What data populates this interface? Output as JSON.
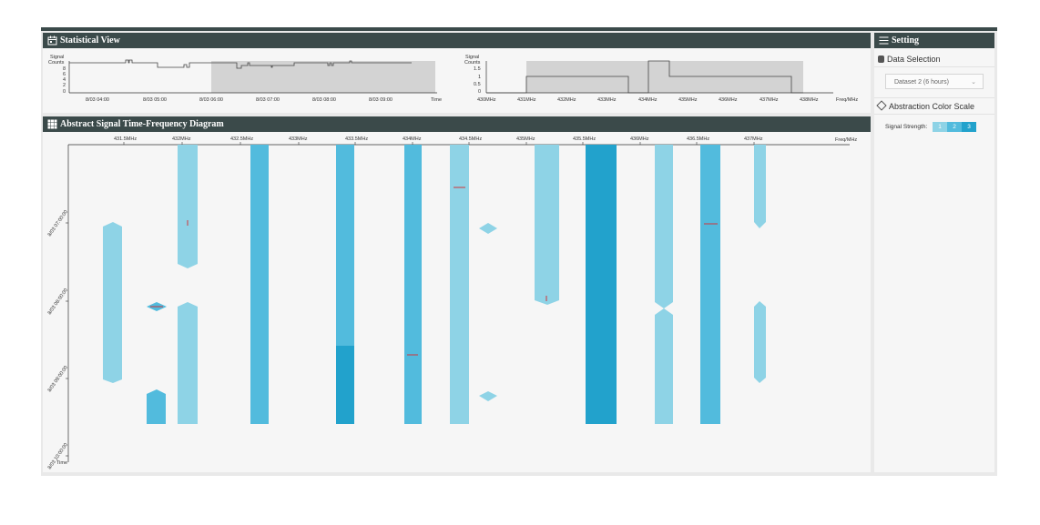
{
  "statistical_view": {
    "title": "Statistical View",
    "time_chart": {
      "ylabel_line1": "Signal",
      "ylabel_line2": "Counts",
      "yticks": [
        "8",
        "6",
        "4",
        "2",
        "0"
      ],
      "xticks": [
        "8/03 04:00",
        "8/03 05:00",
        "8/03 06:00",
        "8/03 07:00",
        "8/03 08:00",
        "8/03 09:00"
      ],
      "xlabel": "Time"
    },
    "freq_chart": {
      "ylabel_line1": "Signal",
      "ylabel_line2": "Counts",
      "yticks": [
        "1.5",
        "1",
        "0.5",
        "0"
      ],
      "xticks": [
        "430MHz",
        "431MHz",
        "432MHz",
        "433MHz",
        "434MHz",
        "435MHz",
        "436MHz",
        "437MHz",
        "438MHz"
      ],
      "xlabel": "Freq/MHz"
    }
  },
  "diagram": {
    "title": "Abstract Signal Time-Frequency Diagram",
    "xticks": [
      "431.5MHz",
      "432MHz",
      "432.5MHz",
      "433MHz",
      "433.5MHz",
      "434MHz",
      "434.5MHz",
      "435MHz",
      "435.5MHz",
      "436MHz",
      "436.5MHz",
      "437MHz"
    ],
    "xlabel": "Freq/MHz",
    "yticks": [
      "8/03 07:00:00",
      "8/03 08:00:00",
      "8/03 09:00:00",
      "8/03 10:00:00"
    ],
    "ylabel": "Time"
  },
  "settings": {
    "title": "Setting",
    "data_selection_label": "Data Selection",
    "dataset_value": "Dataset 2 (6 hours)",
    "color_scale_label": "Abstraction Color Scale",
    "signal_strength_label": "Signal Strength:",
    "levels": [
      "1",
      "2",
      "3"
    ]
  },
  "colors": {
    "header": "#3b4a4a",
    "level1": "#8ed3e6",
    "level2": "#52bbdd",
    "level3": "#22a2cc",
    "marker": "#d0343a"
  }
}
